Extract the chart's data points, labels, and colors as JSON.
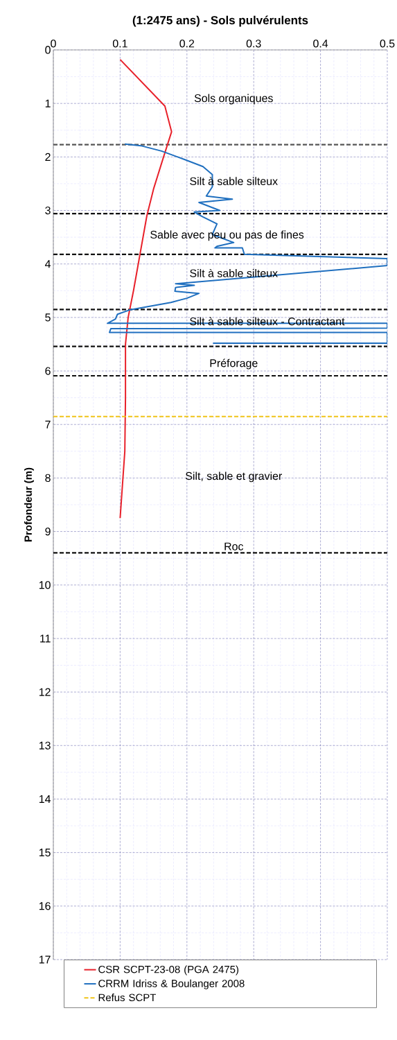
{
  "chart_data": {
    "type": "line",
    "title": "(1:2475 ans) - Sols pulvérulents",
    "ylabel": "Profondeur (m)",
    "xlim": [
      0,
      0.5
    ],
    "xticks": [
      0,
      0.1,
      0.2,
      0.3,
      0.4,
      0.5
    ],
    "ylim": [
      17,
      0
    ],
    "yticks": [
      0,
      1,
      2,
      3,
      4,
      5,
      6,
      7,
      8,
      9,
      10,
      11,
      12,
      13,
      14,
      15,
      16,
      17
    ],
    "grid": true,
    "legend": "bottom",
    "series": [
      {
        "name": "CSR SCPT-23-08 (PGA 2475)",
        "color": "#e8202a",
        "x": [
          0.1,
          0.167,
          0.177,
          0.165,
          0.15,
          0.14,
          0.13,
          0.12,
          0.112,
          0.108,
          0.108,
          0.107,
          0.1
        ],
        "values": [
          0.18,
          1.05,
          1.53,
          2.0,
          2.6,
          3.1,
          3.8,
          4.5,
          5.0,
          5.5,
          6.5,
          7.5,
          8.75
        ]
      },
      {
        "name": "CRRM Idriss & Boulanger 2008",
        "color": "#1f6fbf",
        "x": [
          0.107,
          0.131,
          0.162,
          0.197,
          0.224,
          0.238,
          0.238,
          0.229,
          0.268,
          0.218,
          0.249,
          0.211,
          0.224,
          0.245,
          0.238,
          0.27,
          0.245,
          0.242,
          0.283,
          0.286,
          0.5,
          0.5,
          0.183,
          0.211,
          0.183,
          0.182,
          0.218,
          0.2,
          0.176,
          0.114,
          0.096,
          0.093,
          0.081,
          0.5,
          0.5,
          0.086,
          0.084,
          0.5,
          0.5,
          0.239
        ],
        "values": [
          1.76,
          1.79,
          1.89,
          2.05,
          2.18,
          2.33,
          2.56,
          2.73,
          2.79,
          2.85,
          3.0,
          3.03,
          3.12,
          3.25,
          3.45,
          3.6,
          3.67,
          3.7,
          3.7,
          3.82,
          3.9,
          4.03,
          4.37,
          4.4,
          4.44,
          4.51,
          4.55,
          4.64,
          4.72,
          4.86,
          4.94,
          5.03,
          5.11,
          5.11,
          5.2,
          5.21,
          5.28,
          5.28,
          5.48,
          5.48
        ]
      },
      {
        "name": "Refus SCPT",
        "color": "#f0c419",
        "line_style": "dashed",
        "x": [
          0,
          0.5
        ],
        "values": [
          6.85,
          6.85
        ]
      }
    ],
    "ref_lines": [
      {
        "axis": "y",
        "value": 1.77,
        "color": "#555555",
        "line_style": "dashed"
      },
      {
        "axis": "y",
        "value": 3.06,
        "color": "#111111",
        "line_style": "dashed"
      },
      {
        "axis": "y",
        "value": 3.82,
        "color": "#111111",
        "line_style": "dashed"
      },
      {
        "axis": "y",
        "value": 4.85,
        "color": "#111111",
        "line_style": "dashed"
      },
      {
        "axis": "y",
        "value": 5.54,
        "color": "#111111",
        "line_style": "dashed"
      },
      {
        "axis": "y",
        "value": 6.09,
        "color": "#111111",
        "line_style": "dashed"
      },
      {
        "axis": "y",
        "value": 9.4,
        "color": "#111111",
        "line_style": "dashed"
      }
    ],
    "annotations": [
      "Sols organiques",
      "Silt à sable silteux",
      "Sable avec peu ou pas de fines",
      "Silt à sable silteux",
      "Silt à sable silteux - Contractant",
      "Préforage",
      "Silt, sable et gravier",
      "Roc"
    ]
  }
}
